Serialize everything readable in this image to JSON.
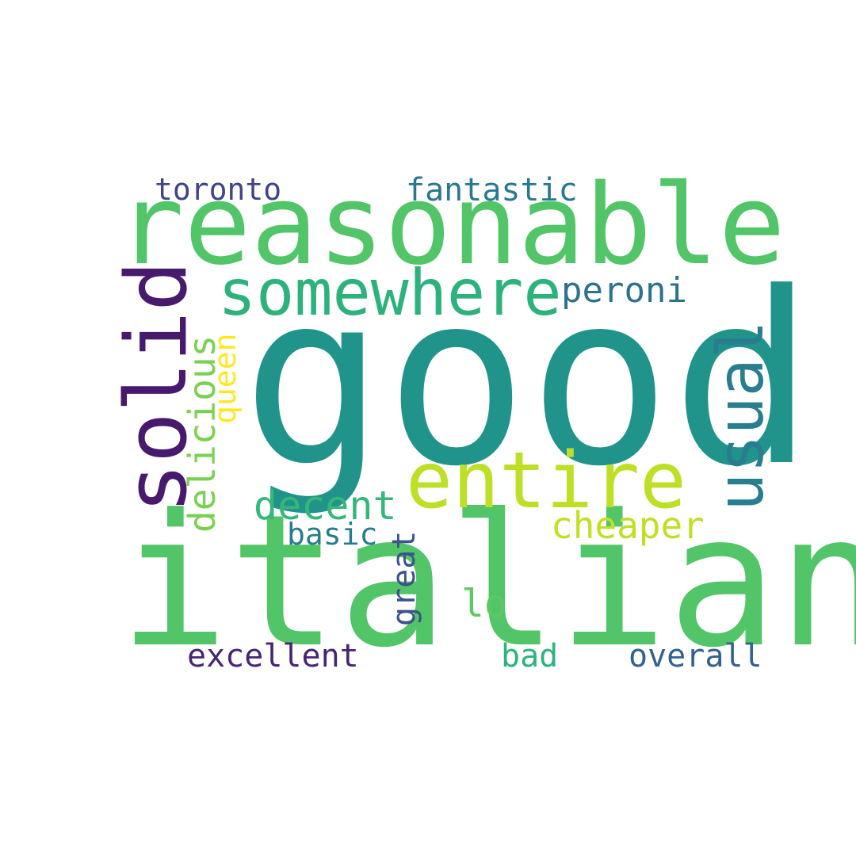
{
  "words": [
    {
      "id": "good",
      "text": "good",
      "color": "#20948b",
      "rotated": false
    },
    {
      "id": "italian",
      "text": "italian",
      "color": "#52c569",
      "rotated": false
    },
    {
      "id": "reasonable",
      "text": "reasonable",
      "color": "#52c569",
      "rotated": false
    },
    {
      "id": "solid",
      "text": "solid",
      "color": "#471a6e",
      "rotated": true
    },
    {
      "id": "entire",
      "text": "entire",
      "color": "#bddf26",
      "rotated": false
    },
    {
      "id": "somewhere",
      "text": "somewhere",
      "color": "#2db27d",
      "rotated": false
    },
    {
      "id": "usual",
      "text": "usual",
      "color": "#287d8e",
      "rotated": true
    },
    {
      "id": "delicious",
      "text": "delicious",
      "color": "#7ad151",
      "rotated": true
    },
    {
      "id": "decent",
      "text": "decent",
      "color": "#35b779",
      "rotated": false
    },
    {
      "id": "cheaper",
      "text": "cheaper",
      "color": "#c2df23",
      "rotated": false
    },
    {
      "id": "queen",
      "text": "queen",
      "color": "#fde725",
      "rotated": true
    },
    {
      "id": "fantastic",
      "text": "fantastic",
      "color": "#2a788e",
      "rotated": false
    },
    {
      "id": "toronto",
      "text": "toronto",
      "color": "#414487",
      "rotated": false
    },
    {
      "id": "peroni",
      "text": "peroni",
      "color": "#2c728e",
      "rotated": false
    },
    {
      "id": "basic",
      "text": "basic",
      "color": "#287c8e",
      "rotated": false
    },
    {
      "id": "great",
      "text": "great",
      "color": "#3b528b",
      "rotated": true
    },
    {
      "id": "lo",
      "text": "lo",
      "color": "#5ec962",
      "rotated": false
    },
    {
      "id": "excellent",
      "text": "excellent",
      "color": "#482475",
      "rotated": false
    },
    {
      "id": "bad",
      "text": "bad",
      "color": "#2eb37c",
      "rotated": false
    },
    {
      "id": "overall",
      "text": "overall",
      "color": "#33638d",
      "rotated": false
    }
  ]
}
